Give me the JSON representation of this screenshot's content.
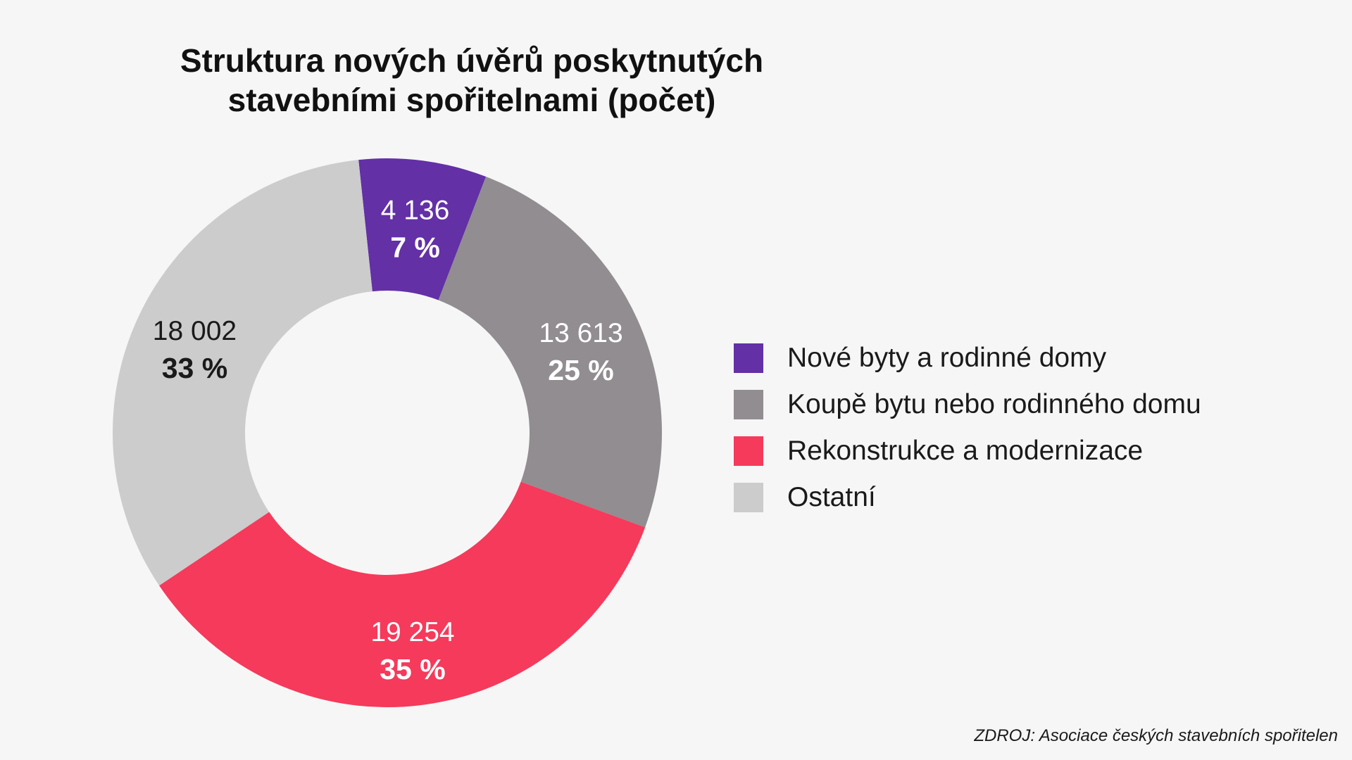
{
  "title_line1": "Struktura nových úvěrů poskytnutých",
  "title_line2": "stavebními spořitelnami (počet)",
  "source": "ZDROJ: Asociace českých stavebních spořitelen",
  "chart_data": {
    "type": "pie",
    "title": "Struktura nových úvěrů poskytnutých stavebními spořitelnami (počet)",
    "legend_position": "right",
    "slices": [
      {
        "name": "Nové byty a rodinné domy",
        "value": 4136,
        "value_label": "4 136",
        "percent": 7,
        "percent_label": "7 %",
        "color": "#6330a6",
        "label_color": "#ffffff"
      },
      {
        "name": "Koupě bytu nebo rodinného domu",
        "value": 13613,
        "value_label": "13 613",
        "percent": 25,
        "percent_label": "25 %",
        "color": "#918d91",
        "label_color": "#ffffff"
      },
      {
        "name": "Rekonstrukce a modernizace",
        "value": 19254,
        "value_label": "19 254",
        "percent": 35,
        "percent_label": "35 %",
        "color": "#f53a5b",
        "label_color": "#ffffff"
      },
      {
        "name": "Ostatní",
        "value": 18002,
        "value_label": "18 002",
        "percent": 33,
        "percent_label": "33 %",
        "color": "#cccccc",
        "label_color": "#1a1a1a"
      }
    ]
  }
}
